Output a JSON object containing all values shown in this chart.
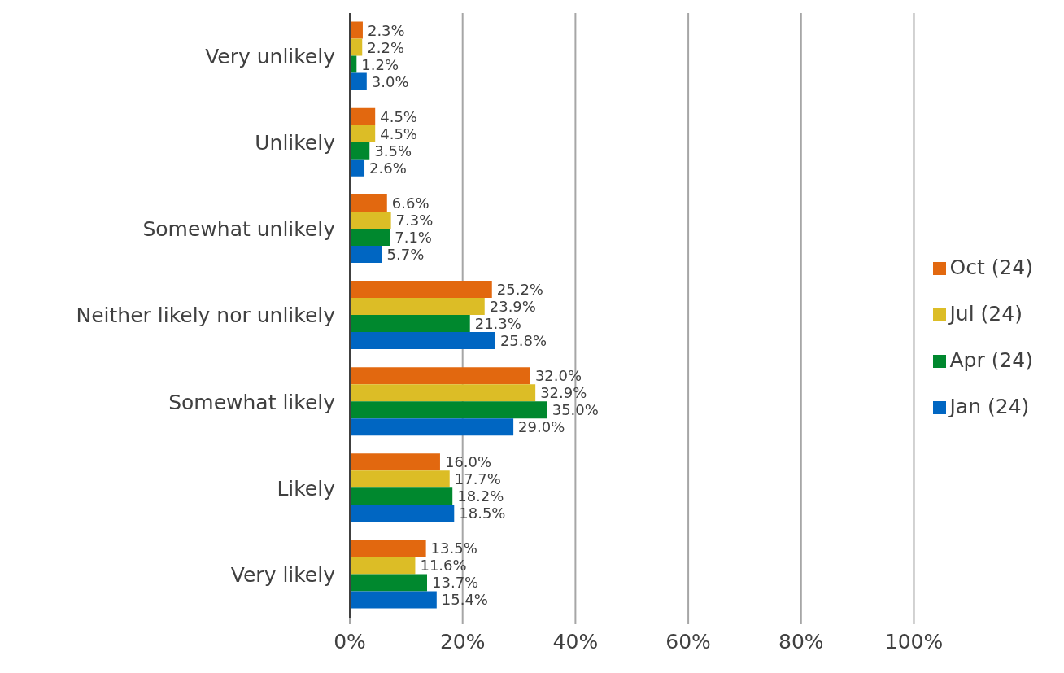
{
  "chart_data": {
    "type": "bar",
    "orientation": "horizontal",
    "categories": [
      "Very unlikely",
      "Unlikely",
      "Somewhat unlikely",
      "Neither likely nor unlikely",
      "Somewhat likely",
      "Likely",
      "Very likely"
    ],
    "series": [
      {
        "name": "Oct (24)",
        "color": "#e2680f",
        "values": [
          2.3,
          4.5,
          6.6,
          25.2,
          32.0,
          16.0,
          13.5
        ],
        "value_labels": [
          "2.3%",
          "4.5%",
          "6.6%",
          "25.2%",
          "32.0%",
          "16.0%",
          "13.5%"
        ]
      },
      {
        "name": "Jul (24)",
        "color": "#dcbd26",
        "values": [
          2.2,
          4.5,
          7.3,
          23.9,
          32.9,
          17.7,
          11.6
        ],
        "value_labels": [
          "2.2%",
          "4.5%",
          "7.3%",
          "23.9%",
          "32.9%",
          "17.7%",
          "11.6%"
        ]
      },
      {
        "name": "Apr (24)",
        "color": "#00882e",
        "values": [
          1.2,
          3.5,
          7.1,
          21.3,
          35.0,
          18.2,
          13.7
        ],
        "value_labels": [
          "1.2%",
          "3.5%",
          "7.1%",
          "21.3%",
          "35.0%",
          "18.2%",
          "13.7%"
        ]
      },
      {
        "name": "Jan (24)",
        "color": "#0066c2",
        "values": [
          3.0,
          2.6,
          5.7,
          25.8,
          29.0,
          18.5,
          15.4
        ],
        "value_labels": [
          "3.0%",
          "2.6%",
          "5.7%",
          "25.8%",
          "29.0%",
          "18.5%",
          "15.4%"
        ]
      }
    ],
    "xlim": [
      0,
      100
    ],
    "xticks": [
      {
        "value": 0,
        "label": "0%"
      },
      {
        "value": 20,
        "label": "20%"
      },
      {
        "value": 40,
        "label": "40%"
      },
      {
        "value": 60,
        "label": "60%"
      },
      {
        "value": 80,
        "label": "80%"
      },
      {
        "value": 100,
        "label": "100%"
      }
    ],
    "grid": "x",
    "legend": "right"
  }
}
